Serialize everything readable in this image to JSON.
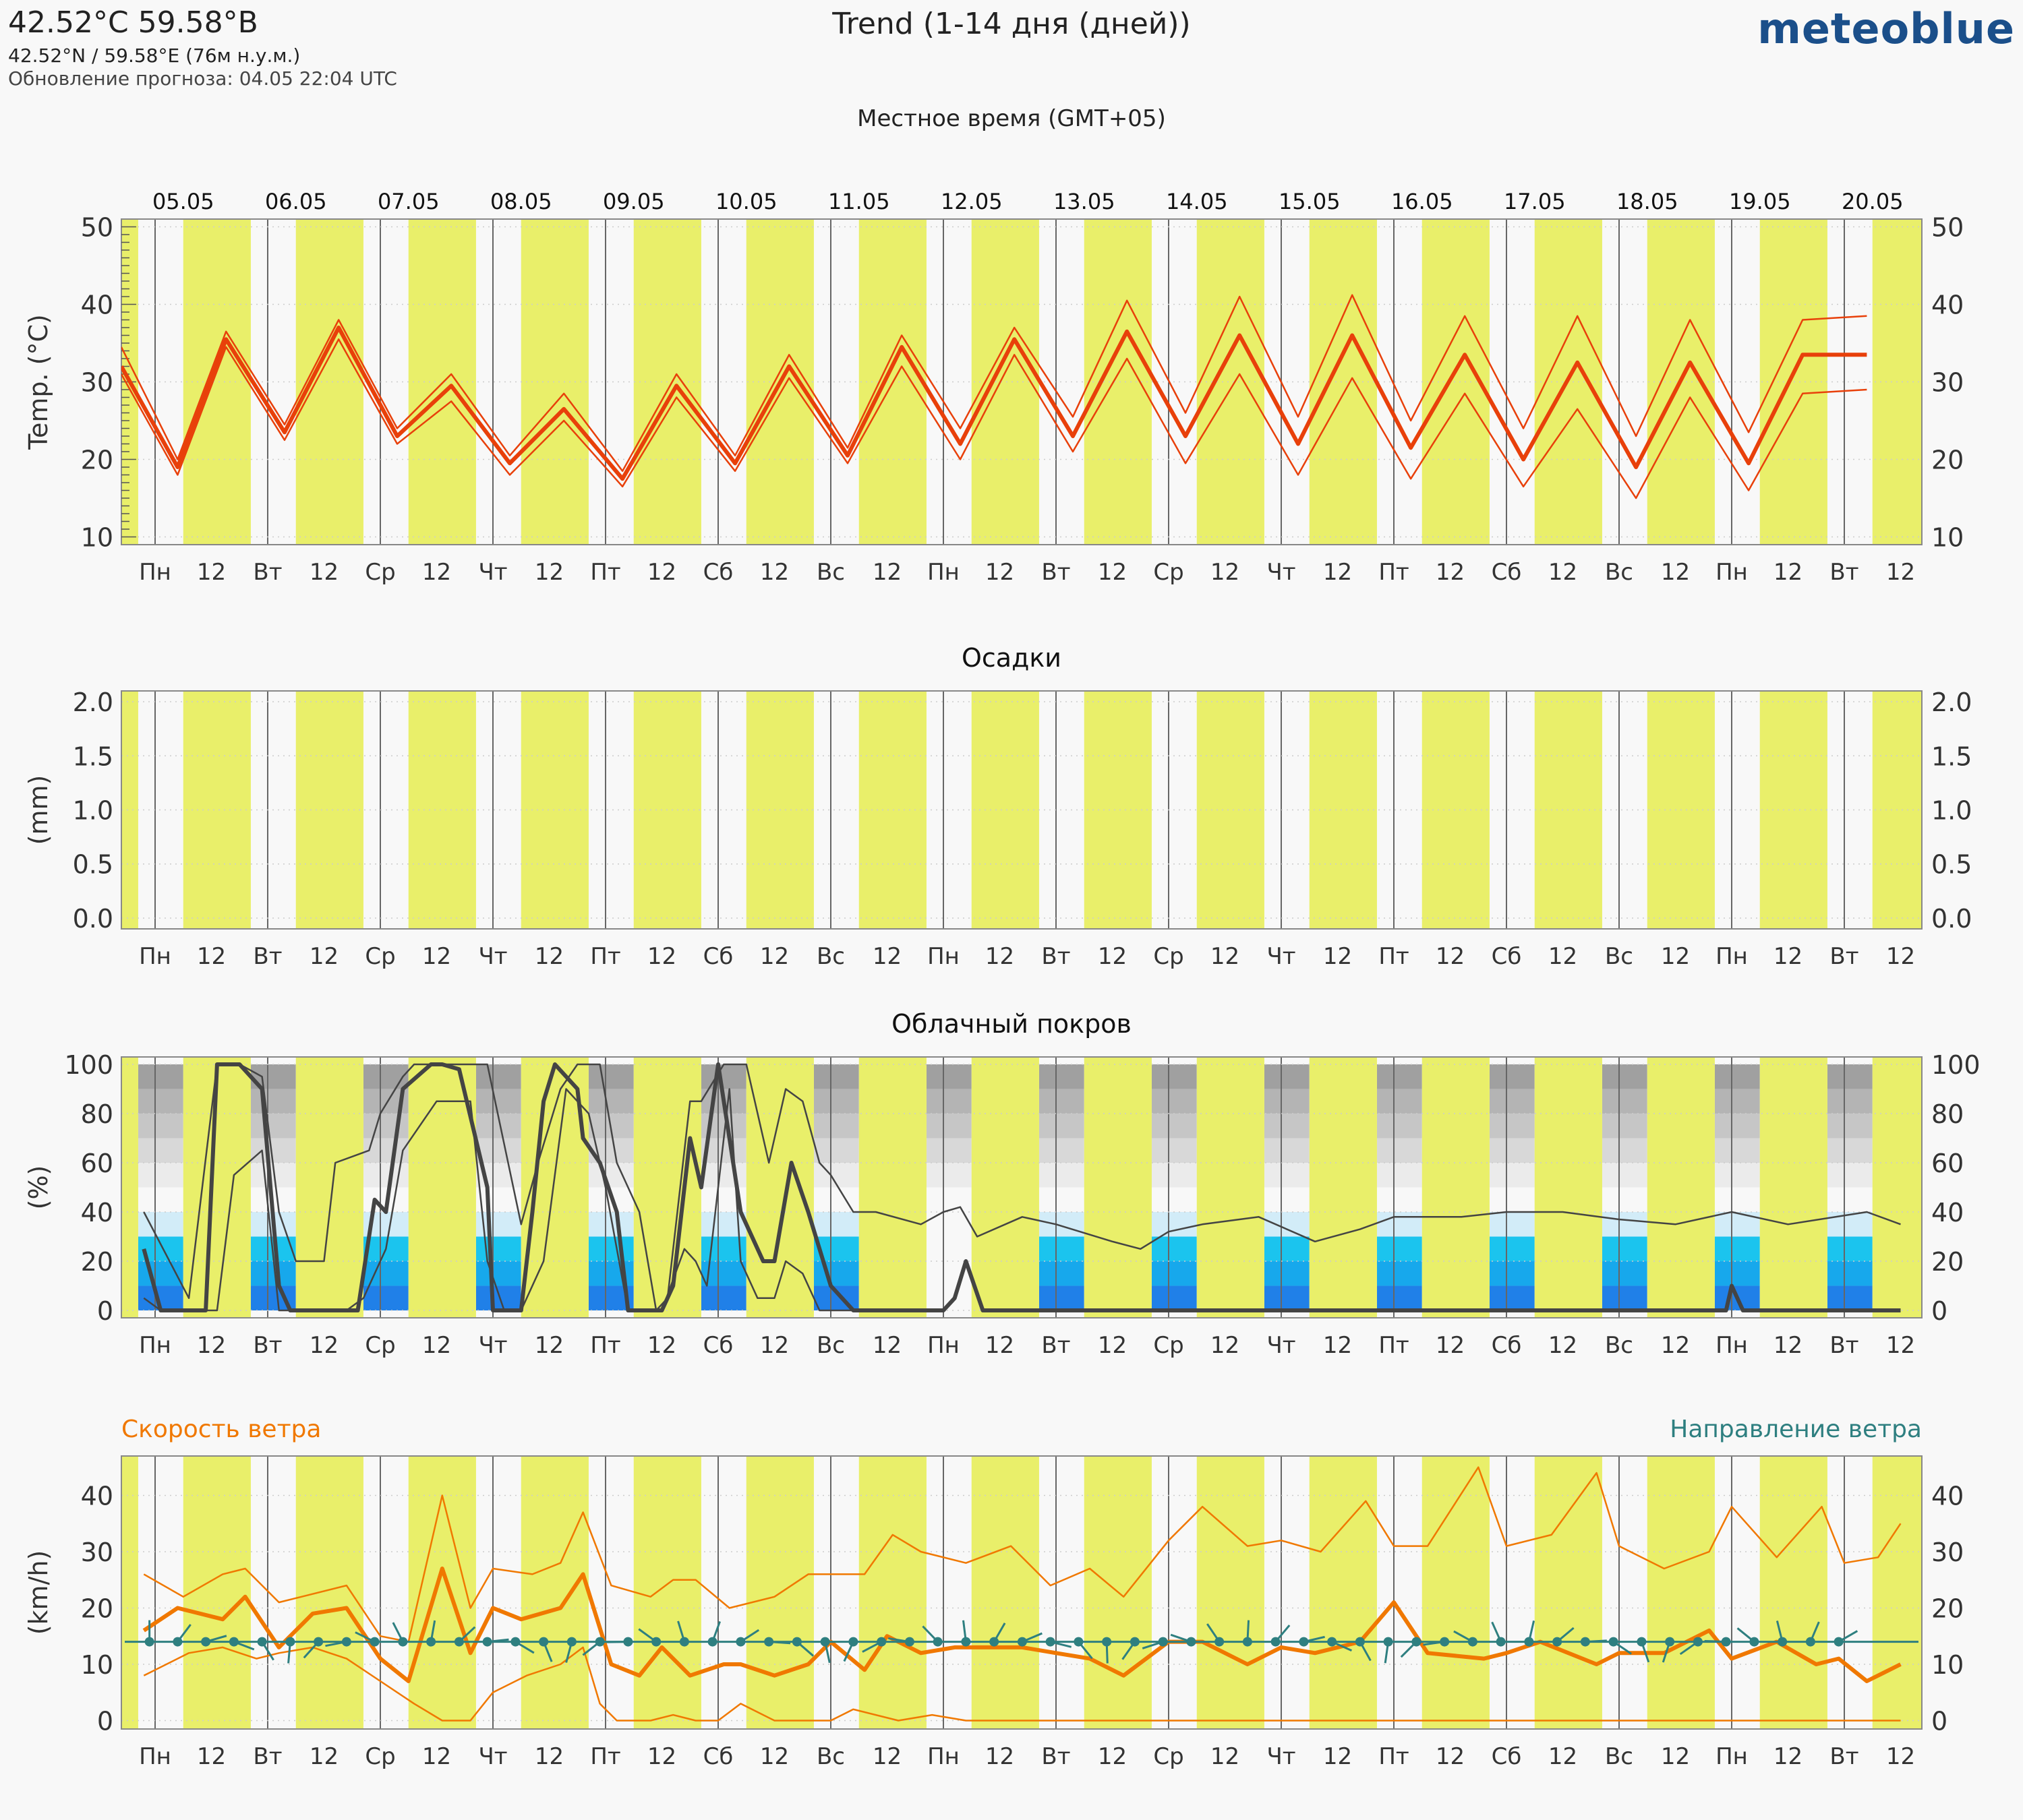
{
  "header": {
    "coordinates": "42.52°C 59.58°B",
    "location": "42.52°N / 59.58°E (76м н.у.м.)",
    "update": "Обновление прогноза: 04.05 22:04 UTC",
    "title": "Trend (1-14 дня (дней))",
    "logo": "meteoblue",
    "timezone": "Местное время (GMT+05)"
  },
  "colors": {
    "day_band": "#e9ef6a",
    "temperature": "#e8400a",
    "cloud_line": "#444444",
    "wind_speed": "#f07800",
    "wind_direction": "#2e7f80"
  },
  "dates": [
    "05.05",
    "06.05",
    "07.05",
    "08.05",
    "09.05",
    "10.05",
    "11.05",
    "12.05",
    "13.05",
    "14.05",
    "15.05",
    "16.05",
    "17.05",
    "18.05",
    "19.05",
    "20.05"
  ],
  "day_labels": [
    "Пн",
    "Вт",
    "Ср",
    "Чт",
    "Пт",
    "Сб",
    "Вс",
    "Пн",
    "Вт",
    "Ср",
    "Чт",
    "Пт",
    "Сб",
    "Вс",
    "Пн",
    "Вт"
  ],
  "noon_label": "12",
  "chart_data": [
    {
      "type": "line",
      "title": "",
      "ylabel": "Temp. (°C)",
      "ylim": [
        9,
        51
      ],
      "yticks": [
        10,
        20,
        30,
        40,
        50
      ],
      "x_unit": "day index (0 = 05.05 00:00 local)",
      "series": [
        {
          "name": "",
          "role": "median",
          "x": [
            -0.3,
            0.2,
            0.63,
            1.15,
            1.63,
            2.15,
            2.63,
            3.15,
            3.63,
            4.15,
            4.63,
            5.15,
            5.63,
            6.15,
            6.63,
            7.15,
            7.63,
            8.15,
            8.63,
            9.15,
            9.63,
            10.15,
            10.63,
            11.15,
            11.63,
            12.15,
            12.63,
            13.15,
            13.63,
            14.15,
            14.63,
            15.2
          ],
          "y": [
            32,
            19,
            35.5,
            23.5,
            37,
            23,
            29.5,
            19.5,
            26.5,
            17.5,
            29.5,
            19.5,
            32,
            20.5,
            34.5,
            22,
            35.5,
            23,
            36.5,
            23,
            36,
            22,
            36,
            21.5,
            33.5,
            20,
            32.5,
            19,
            32.5,
            19.5,
            33.5,
            33.5
          ]
        },
        {
          "name": "",
          "role": "upper",
          "x": [
            -0.3,
            0.2,
            0.63,
            1.15,
            1.63,
            2.15,
            2.63,
            3.15,
            3.63,
            4.15,
            4.63,
            5.15,
            5.63,
            6.15,
            6.63,
            7.15,
            7.63,
            8.15,
            8.63,
            9.15,
            9.63,
            10.15,
            10.63,
            11.15,
            11.63,
            12.15,
            12.63,
            13.15,
            13.63,
            14.15,
            14.63,
            15.2
          ],
          "y": [
            34.5,
            20,
            36.5,
            24.5,
            38,
            24,
            31,
            20.5,
            28.5,
            18.5,
            31,
            20.5,
            33.5,
            21.5,
            36,
            24,
            37,
            25.5,
            40.5,
            26,
            41,
            25.5,
            41.2,
            25,
            38.5,
            24,
            38.5,
            23,
            38,
            23.5,
            38,
            38.5
          ]
        },
        {
          "name": "",
          "role": "lower",
          "x": [
            -0.3,
            0.2,
            0.63,
            1.15,
            1.63,
            2.15,
            2.63,
            3.15,
            3.63,
            4.15,
            4.63,
            5.15,
            5.63,
            6.15,
            6.63,
            7.15,
            7.63,
            8.15,
            8.63,
            9.15,
            9.63,
            10.15,
            10.63,
            11.15,
            11.63,
            12.15,
            12.63,
            13.15,
            13.63,
            14.15,
            14.63,
            15.2
          ],
          "y": [
            31,
            18,
            34.5,
            22.5,
            35.5,
            22,
            27.5,
            18,
            25,
            16.5,
            28,
            18.5,
            30.5,
            19.5,
            32,
            20,
            33.5,
            21,
            33,
            19.5,
            31,
            18,
            30.5,
            17.5,
            28.5,
            16.5,
            26.5,
            15,
            28,
            16,
            28.5,
            29
          ]
        }
      ]
    },
    {
      "type": "bar",
      "title": "Осадки",
      "ylabel": "(mm)",
      "ylim": [
        -0.1,
        2.1
      ],
      "yticks": [
        0.0,
        0.5,
        1.0,
        1.5,
        2.0
      ],
      "yticklabels": [
        "0.0",
        "0.5",
        "1.0",
        "1.5",
        "2.0"
      ],
      "values": []
    },
    {
      "type": "line",
      "title": "Облачный покров",
      "ylabel": "(%)",
      "ylim": [
        -3,
        103
      ],
      "yticks": [
        0,
        20,
        40,
        60,
        80,
        100
      ],
      "series": [
        {
          "name": "",
          "role": "median",
          "x": [
            -0.1,
            0.05,
            0.45,
            0.55,
            0.75,
            0.95,
            1.1,
            1.2,
            1.8,
            1.95,
            2.05,
            2.2,
            2.45,
            2.55,
            2.7,
            2.95,
            3.0,
            3.25,
            3.35,
            3.45,
            3.55,
            3.75,
            3.8,
            3.95,
            4.1,
            4.2,
            4.5,
            4.6,
            4.75,
            4.85,
            5.0,
            5.2,
            5.4,
            5.5,
            5.65,
            5.8,
            6.0,
            6.2,
            7.0,
            7.1,
            7.2,
            7.35,
            8.0,
            13.95,
            14.0,
            14.1,
            15.5
          ],
          "y": [
            25,
            0,
            0,
            100,
            100,
            90,
            10,
            0,
            0,
            45,
            40,
            90,
            100,
            100,
            98,
            50,
            0,
            0,
            40,
            85,
            100,
            90,
            70,
            60,
            40,
            0,
            0,
            10,
            70,
            50,
            100,
            40,
            20,
            20,
            60,
            40,
            10,
            0,
            0,
            5,
            20,
            0,
            0,
            0,
            10,
            0,
            0
          ]
        },
        {
          "name": "",
          "role": "upper",
          "x": [
            -0.1,
            0.3,
            0.55,
            0.75,
            0.95,
            1.1,
            1.25,
            1.5,
            1.6,
            1.9,
            2.0,
            2.2,
            2.3,
            2.8,
            2.95,
            3.25,
            3.4,
            3.6,
            3.75,
            3.95,
            4.1,
            4.3,
            4.45,
            4.55,
            4.75,
            4.85,
            5.05,
            5.25,
            5.45,
            5.6,
            5.75,
            5.9,
            6.0,
            6.2,
            6.4,
            6.8,
            7.0,
            7.15,
            7.3,
            7.7,
            8.0,
            8.5,
            8.75,
            9.0,
            9.3,
            9.8,
            10.3,
            10.7,
            11.0,
            11.6,
            12.0,
            12.5,
            13.0,
            13.5,
            14.0,
            14.5,
            15.2,
            15.5
          ],
          "y": [
            40,
            5,
            100,
            100,
            95,
            40,
            20,
            20,
            60,
            65,
            80,
            95,
            100,
            100,
            100,
            35,
            60,
            90,
            100,
            100,
            60,
            40,
            0,
            5,
            85,
            85,
            100,
            100,
            60,
            90,
            85,
            60,
            55,
            40,
            40,
            35,
            40,
            42,
            30,
            38,
            35,
            28,
            25,
            32,
            35,
            38,
            28,
            33,
            38,
            38,
            40,
            40,
            37,
            35,
            40,
            35,
            40,
            35
          ]
        },
        {
          "name": "",
          "role": "lower",
          "x": [
            -0.1,
            0.05,
            0.55,
            0.7,
            0.95,
            1.1,
            1.7,
            1.85,
            2.05,
            2.2,
            2.5,
            2.8,
            2.95,
            3.1,
            3.25,
            3.45,
            3.65,
            3.85,
            4.0,
            4.2,
            4.5,
            4.7,
            4.8,
            4.9,
            5.1,
            5.2,
            5.35,
            5.5,
            5.6,
            5.75,
            5.9,
            6.1,
            6.25
          ],
          "y": [
            5,
            0,
            0,
            55,
            65,
            0,
            0,
            5,
            25,
            65,
            85,
            85,
            20,
            0,
            0,
            20,
            90,
            80,
            50,
            0,
            0,
            25,
            20,
            10,
            90,
            20,
            5,
            5,
            20,
            15,
            0,
            0,
            0
          ]
        }
      ],
      "cloud_levels": [
        "high",
        "mid",
        "low"
      ]
    },
    {
      "type": "line",
      "title": "",
      "ylabel": "(km/h)",
      "legend": [
        "Скорость ветра",
        "Направление ветра"
      ],
      "ylim": [
        -1.5,
        47
      ],
      "yticks": [
        0,
        10,
        20,
        30,
        40
      ],
      "series": [
        {
          "name": "Скорость ветра",
          "role": "median",
          "x": [
            -0.1,
            0.2,
            0.6,
            0.8,
            1.1,
            1.4,
            1.7,
            2.0,
            2.25,
            2.55,
            2.8,
            3.0,
            3.25,
            3.6,
            3.8,
            4.05,
            4.3,
            4.5,
            4.75,
            5.05,
            5.2,
            5.5,
            5.8,
            6.0,
            6.3,
            6.5,
            6.8,
            7.1,
            7.3,
            7.7,
            8.0,
            8.3,
            8.6,
            9.0,
            9.3,
            9.7,
            10.0,
            10.3,
            10.7,
            11.0,
            11.3,
            11.8,
            12.0,
            12.3,
            12.8,
            13.0,
            13.4,
            13.8,
            14.0,
            14.4,
            14.75,
            14.95,
            15.2,
            15.5
          ],
          "y": [
            16,
            20,
            18,
            22,
            13,
            19,
            20,
            11,
            7,
            27,
            12,
            20,
            18,
            20,
            26,
            10,
            8,
            13,
            8,
            10,
            10,
            8,
            10,
            14,
            9,
            15,
            12,
            13,
            13,
            13,
            12,
            11,
            8,
            14,
            14,
            10,
            13,
            12,
            14,
            21,
            12,
            11,
            12,
            14,
            10,
            12,
            12,
            16,
            11,
            14,
            10,
            11,
            7,
            10
          ]
        },
        {
          "name": "",
          "role": "upper",
          "x": [
            -0.1,
            0.25,
            0.6,
            0.8,
            1.1,
            1.3,
            1.7,
            2.0,
            2.25,
            2.55,
            2.8,
            3.0,
            3.35,
            3.6,
            3.8,
            4.05,
            4.4,
            4.6,
            4.8,
            5.1,
            5.5,
            5.8,
            6.0,
            6.3,
            6.55,
            6.8,
            7.2,
            7.6,
            7.95,
            8.3,
            8.6,
            9.0,
            9.3,
            9.7,
            10.0,
            10.35,
            10.75,
            11.0,
            11.3,
            11.75,
            12.0,
            12.4,
            12.8,
            13.0,
            13.4,
            13.8,
            14.0,
            14.4,
            14.8,
            15.0,
            15.3,
            15.5
          ],
          "y": [
            26,
            22,
            26,
            27,
            21,
            22,
            24,
            15,
            14,
            40,
            20,
            27,
            26,
            28,
            37,
            24,
            22,
            25,
            25,
            20,
            22,
            26,
            26,
            26,
            33,
            30,
            28,
            31,
            24,
            27,
            22,
            32,
            38,
            31,
            32,
            30,
            39,
            31,
            31,
            45,
            31,
            33,
            44,
            31,
            27,
            30,
            38,
            29,
            38,
            28,
            29,
            35
          ]
        },
        {
          "name": "",
          "role": "lower",
          "x": [
            -0.1,
            0.3,
            0.6,
            0.9,
            1.1,
            1.4,
            1.7,
            2.0,
            2.3,
            2.55,
            2.8,
            3.0,
            3.3,
            3.6,
            3.8,
            3.95,
            4.1,
            4.4,
            4.6,
            4.8,
            5.0,
            5.2,
            5.5,
            6.0,
            6.2,
            6.6,
            6.9,
            7.2,
            7.6,
            8.0,
            8.5,
            9.0,
            14.5,
            15.5
          ],
          "y": [
            8,
            12,
            13,
            11,
            12,
            13,
            11,
            7,
            3,
            0,
            0,
            5,
            8,
            10,
            13,
            3,
            0,
            0,
            1,
            0,
            0,
            3,
            0,
            0,
            2,
            0,
            1,
            0,
            0,
            0,
            0,
            0,
            0,
            0
          ]
        },
        {
          "name": "Направление ветра",
          "role": "direction",
          "x": [
            0,
            15.5
          ],
          "y": [
            14,
            14
          ]
        }
      ]
    }
  ]
}
